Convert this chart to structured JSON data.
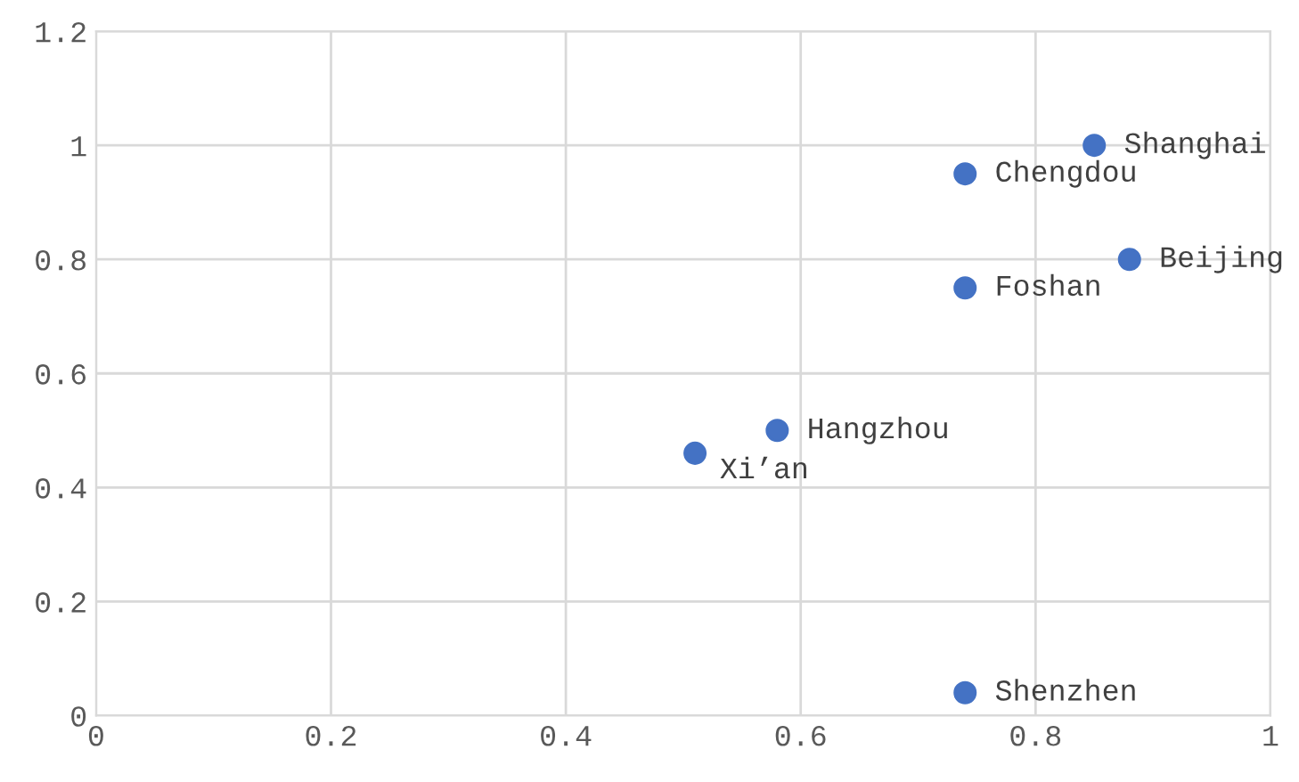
{
  "chart_data": {
    "type": "scatter",
    "x": [
      0.85,
      0.74,
      0.88,
      0.74,
      0.58,
      0.51,
      0.74
    ],
    "series": [
      {
        "color": "#4472c4",
        "values": [
          1.0,
          0.95,
          0.8,
          0.75,
          0.5,
          0.46,
          0.04
        ]
      }
    ],
    "annotations": [
      {
        "text": "Shanghai",
        "x": 0.85,
        "y": 1.0
      },
      {
        "text": "Chengdou",
        "x": 0.74,
        "y": 0.95
      },
      {
        "text": "Beijing",
        "x": 0.88,
        "y": 0.8
      },
      {
        "text": "Foshan",
        "x": 0.74,
        "y": 0.75
      },
      {
        "text": "Hangzhou",
        "x": 0.58,
        "y": 0.5
      },
      {
        "text": "Xi’an",
        "x": 0.51,
        "y": 0.46
      },
      {
        "text": "Shenzhen",
        "x": 0.74,
        "y": 0.04
      }
    ],
    "xlim": [
      0,
      1
    ],
    "xticks": [
      0,
      0.2,
      0.4,
      0.6,
      0.8,
      1
    ],
    "ylim": [
      0,
      1.2
    ],
    "yticks": [
      0,
      0.2,
      0.4,
      0.6,
      0.8,
      1,
      1.2
    ],
    "grid": true,
    "marker": "circle",
    "legend": false
  }
}
